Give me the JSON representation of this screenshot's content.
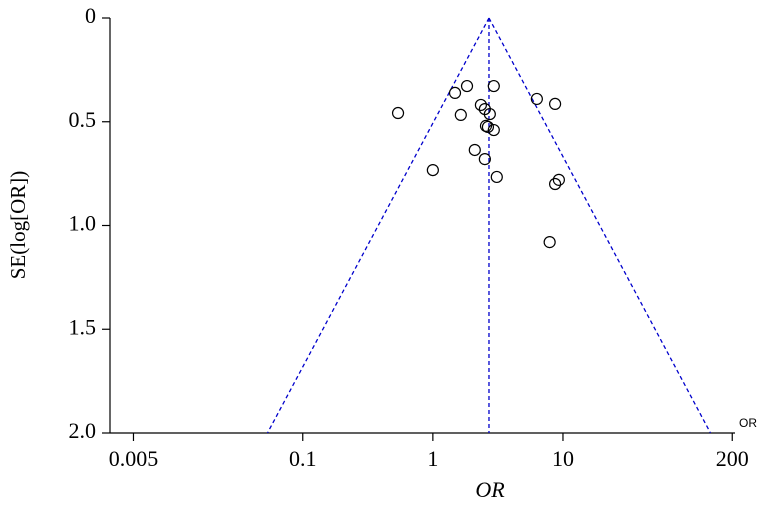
{
  "chart_data": {
    "type": "scatter",
    "x_label": "OR",
    "y_label": "SE(log[OR])",
    "corner_label": "OR",
    "x": [
      0.54,
      1.0,
      1.48,
      1.83,
      1.64,
      2.34,
      2.51,
      2.74,
      2.56,
      2.65,
      2.94,
      2.1,
      2.51,
      2.94,
      3.1,
      6.3,
      8.7,
      8.7,
      9.3,
      7.9
    ],
    "values": [
      0.458,
      0.733,
      0.361,
      0.328,
      0.467,
      0.419,
      0.439,
      0.463,
      0.52,
      0.525,
      0.54,
      0.636,
      0.68,
      0.328,
      0.766,
      0.39,
      0.414,
      0.8,
      0.78,
      1.08
    ],
    "color": "#000000",
    "pooled_or": 2.7,
    "funnel_color": "#0000cc",
    "x_log": true,
    "y_reversed": true,
    "xlim": [
      0.0033,
      210
    ],
    "ylim": [
      0,
      2
    ],
    "xticks": [
      0.005,
      0.1,
      1,
      10,
      200
    ],
    "yticks": [
      0,
      0.5,
      {
        "value": 1,
        "label": "1.0"
      },
      {
        "value": 1.5,
        "label": "1.5"
      },
      {
        "value": 2,
        "label": "2.0"
      }
    ]
  }
}
